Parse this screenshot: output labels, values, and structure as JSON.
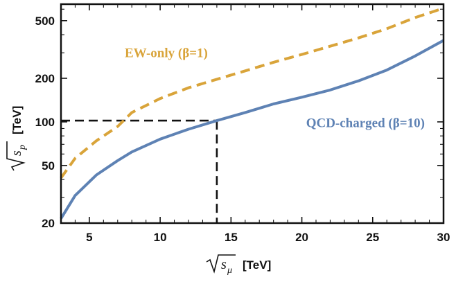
{
  "chart_data": {
    "type": "line",
    "xlabel": "[TeV]",
    "xlabel_symbol": "s",
    "xlabel_subscript": "μ",
    "ylabel": "[TeV]",
    "ylabel_symbol": "s",
    "ylabel_subscript": "p",
    "xlim": [
      3,
      30
    ],
    "ylim": [
      20,
      650
    ],
    "yscale": "log",
    "x_ticks": [
      5,
      10,
      15,
      20,
      25,
      30
    ],
    "x_tick_labels": [
      "5",
      "10",
      "15",
      "20",
      "25",
      "30"
    ],
    "y_ticks": [
      20,
      50,
      100,
      200,
      500
    ],
    "y_tick_labels": [
      "20",
      "50",
      "100",
      "200",
      "500"
    ],
    "grid": false,
    "series": [
      {
        "name": "EW-only (β=1)",
        "style": "dashed",
        "color": "#D9A43A",
        "x": [
          3,
          4,
          5.5,
          7,
          8,
          10,
          12,
          14,
          16,
          18,
          20,
          22,
          24,
          26,
          28,
          30
        ],
        "y": [
          41,
          56,
          74,
          93,
          116,
          145,
          172,
          197,
          225,
          258,
          292,
          333,
          380,
          440,
          525,
          610
        ]
      },
      {
        "name": "QCD-charged (β=10)",
        "style": "solid",
        "color": "#5E82B4",
        "x": [
          3,
          4,
          5.5,
          7,
          8,
          10,
          12,
          14,
          16,
          18,
          20,
          22,
          24,
          26,
          28,
          30
        ],
        "y": [
          21.5,
          31,
          43,
          54,
          62,
          76,
          89,
          102,
          116,
          133,
          148,
          166,
          192,
          228,
          285,
          365
        ]
      }
    ],
    "annotations": [
      {
        "text": "EW-only (β=1)",
        "color": "#D9A43A",
        "x": 7.5,
        "y": 280
      },
      {
        "text": "QCD-charged (β=10)",
        "color": "#5E82B4",
        "x": 20.3,
        "y": 92
      }
    ],
    "reference_point": {
      "x": 14,
      "y": 102,
      "style": "dashed",
      "color": "#111111"
    }
  }
}
